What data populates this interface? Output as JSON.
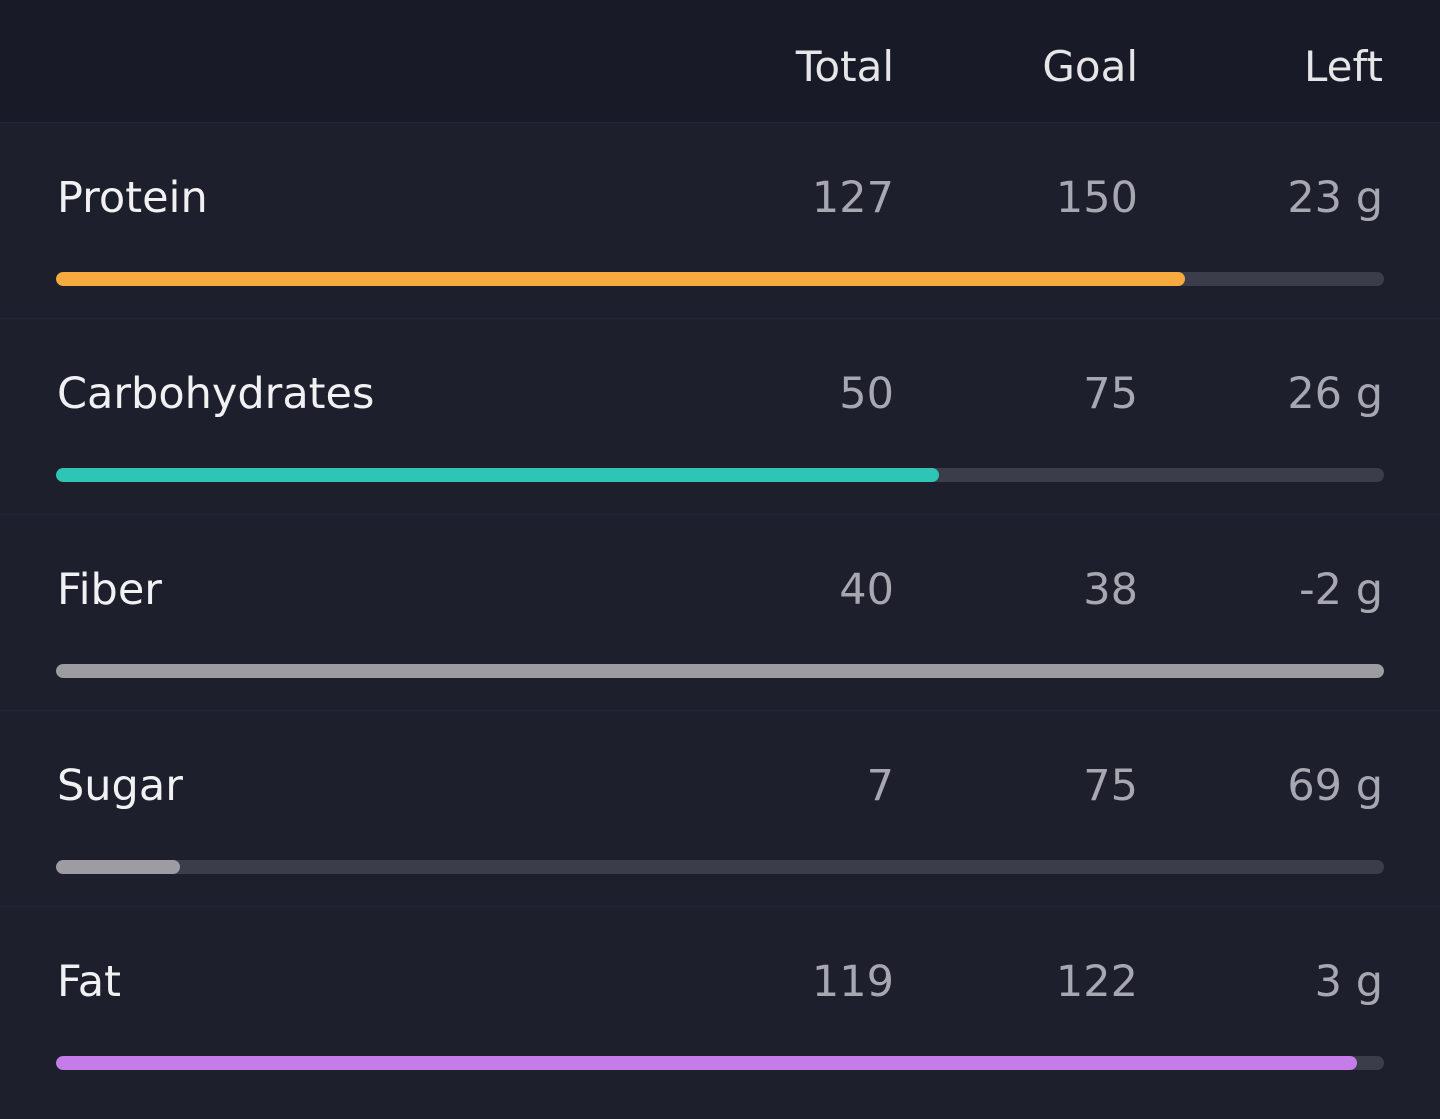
{
  "header": {
    "total": "Total",
    "goal": "Goal",
    "left": "Left"
  },
  "rows": [
    {
      "label": "Protein",
      "total": "127",
      "goal": "150",
      "left": "23 g",
      "progress": 0.85,
      "color": "#f7ab3f"
    },
    {
      "label": "Carbohydrates",
      "total": "50",
      "goal": "75",
      "left": "26 g",
      "progress": 0.665,
      "color": "#2ec4b6"
    },
    {
      "label": "Fiber",
      "total": "40",
      "goal": "38",
      "left": "-2 g",
      "progress": 1.0,
      "color": "#9c9ca2"
    },
    {
      "label": "Sugar",
      "total": "7",
      "goal": "75",
      "left": "69 g",
      "progress": 0.093,
      "color": "#9c9ca2"
    },
    {
      "label": "Fat",
      "total": "119",
      "goal": "122",
      "left": "3 g",
      "progress": 0.98,
      "color": "#c57ce9"
    }
  ],
  "colors": {
    "background": "#1e1f2d",
    "header_background": "#191a27",
    "track": "#3c3d4b"
  }
}
